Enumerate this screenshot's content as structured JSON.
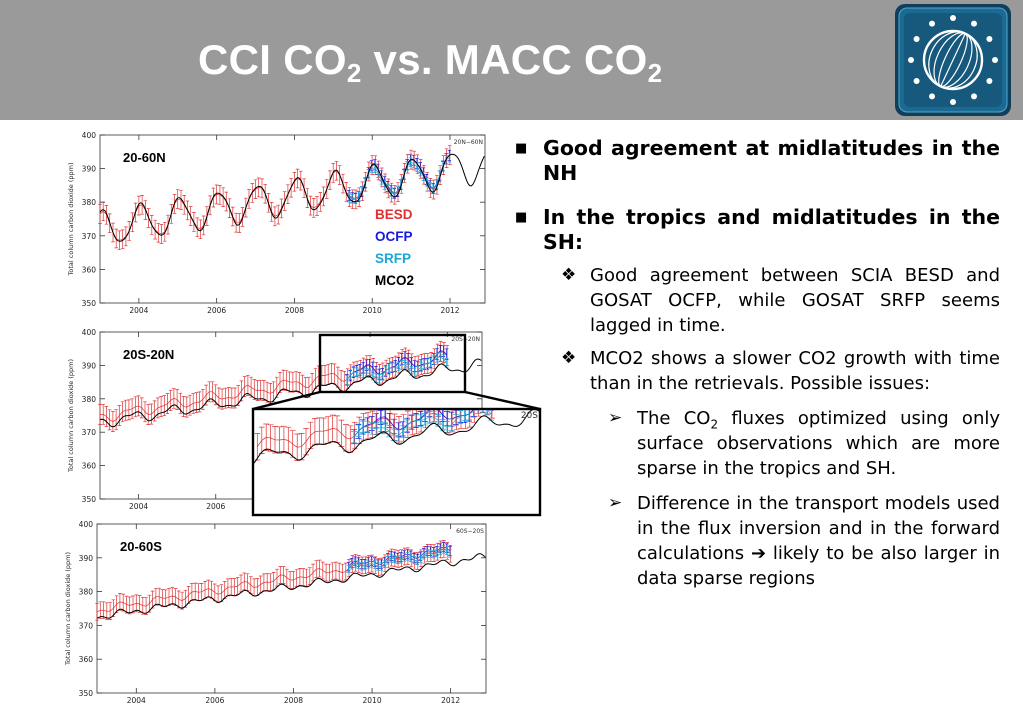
{
  "slide": {
    "title_main": "CCI CO",
    "title_sub1": "2",
    "title_vs": " vs. MACC CO",
    "title_sub2": "2"
  },
  "bullets": {
    "b1": "Good agreement at midlatitudes in the NH",
    "b2": "In the tropics and midlatitudes in the SH:",
    "b2_1": "Good agreement between SCIA BESD and GOSAT OCFP, while GOSAT SRFP seems lagged in time.",
    "b2_2": "MCO2 shows a slower CO2 growth with time than in the retrievals. Possible issues:",
    "b3_1_pre": "The CO",
    "b3_1_sub": "2",
    "b3_1_post": " fluxes optimized using only surface observations which are more sparse in the tropics and SH.",
    "b3_2_pre": "Difference in the transport models used in the flux inversion and in the forward calculations ",
    "b3_2_post": " likely to be also larger in data sparse regions"
  },
  "colors": {
    "header": "#9a9a9a",
    "besd": "#e03030",
    "ocfp": "#1a1adc",
    "srfp": "#1aa7d8",
    "mco2": "#000000",
    "logo_bg": "#1a5f86"
  },
  "icons": [
    "bullet-square-icon",
    "bullet-diamond-icon",
    "bullet-arrowhead-icon",
    "right-arrow-icon",
    "esa-cci-logo"
  ],
  "legend": {
    "besd": "BESD",
    "ocfp": "OCFP",
    "srfp": "SRFP",
    "mco2": "MCO2"
  },
  "chart_data": [
    {
      "type": "line",
      "panel_label": "20-60N",
      "corner_label": "20N−60N",
      "ylabel": "Total column carbon dioxide (ppm)",
      "xticks": [
        "2004",
        "2006",
        "2008",
        "2010",
        "2012"
      ],
      "yticks": [
        "350",
        "360",
        "370",
        "380",
        "390",
        "400"
      ],
      "xlim": [
        2003.0,
        2012.9
      ],
      "ylim": [
        350,
        400
      ],
      "series": [
        {
          "name": "BESD",
          "kind": "errorbar",
          "x_start": 2003.0,
          "x_end": 2012.0,
          "step": 0.0833,
          "base": 371.9,
          "trend_per_year": 2.0,
          "season_amp": 4.8,
          "season_phase": 0.2,
          "err": 2.8
        },
        {
          "name": "OCFP",
          "kind": "errorbar",
          "x_start": 2009.4,
          "x_end": 2012.0,
          "step": 0.0833,
          "base": 372.1,
          "trend_per_year": 2.0,
          "season_amp": 4.6,
          "season_phase": 0.2,
          "err": 1.5
        },
        {
          "name": "SRFP",
          "kind": "errorbar",
          "x_start": 2009.4,
          "x_end": 2012.0,
          "step": 0.0833,
          "base": 371.6,
          "trend_per_year": 2.0,
          "season_amp": 4.2,
          "season_phase": 0.22,
          "err": 1.3
        },
        {
          "name": "MCO2",
          "kind": "line",
          "x_start": 2003.0,
          "x_end": 2012.9,
          "step": 0.0417,
          "base": 372.0,
          "trend_per_year": 1.95,
          "season_amp": 5.2,
          "season_phase": 0.2,
          "err": 0
        }
      ]
    },
    {
      "type": "line",
      "panel_label": "20S-20N",
      "corner_label": "20S−20N",
      "ylabel": "Total column carbon dioxide (ppm)",
      "xticks": [
        "2004",
        "2006",
        "2008",
        "2010",
        "2012"
      ],
      "yticks": [
        "350",
        "360",
        "370",
        "380",
        "390",
        "400"
      ],
      "xlim": [
        2003.0,
        2012.9
      ],
      "ylim": [
        350,
        400
      ],
      "series": [
        {
          "name": "BESD",
          "kind": "errorbar",
          "x_start": 2003.0,
          "x_end": 2012.0,
          "step": 0.0833,
          "base": 374.5,
          "trend_per_year": 2.0,
          "season_amp": 1.4,
          "season_phase": 0.4,
          "err": 3.0
        },
        {
          "name": "OCFP",
          "kind": "errorbar",
          "x_start": 2009.4,
          "x_end": 2012.0,
          "step": 0.0833,
          "base": 374.6,
          "trend_per_year": 2.0,
          "season_amp": 1.6,
          "season_phase": 0.4,
          "err": 1.6
        },
        {
          "name": "SRFP",
          "kind": "errorbar",
          "x_start": 2009.4,
          "x_end": 2012.0,
          "step": 0.0833,
          "base": 373.4,
          "trend_per_year": 2.0,
          "season_amp": 1.3,
          "season_phase": 0.55,
          "err": 1.3
        },
        {
          "name": "MCO2",
          "kind": "line",
          "x_start": 2003.0,
          "x_end": 2012.9,
          "step": 0.0417,
          "base": 373.0,
          "trend_per_year": 1.75,
          "season_amp": 1.4,
          "season_phase": 0.4,
          "err": 0
        }
      ],
      "inset": {
        "xlim": [
          2007.5,
          2012.9
        ],
        "ylim": [
          350,
          400
        ],
        "corner_label": "20S"
      }
    },
    {
      "type": "line",
      "panel_label": "20-60S",
      "corner_label": "60S−20S",
      "ylabel": "Total column carbon dioxide (ppm)",
      "xticks": [
        "2004",
        "2006",
        "2008",
        "2010",
        "2012"
      ],
      "yticks": [
        "350",
        "360",
        "370",
        "380",
        "390",
        "400"
      ],
      "xlim": [
        2003.0,
        2012.9
      ],
      "ylim": [
        350,
        400
      ],
      "series": [
        {
          "name": "BESD",
          "kind": "errorbar",
          "x_start": 2003.0,
          "x_end": 2012.0,
          "step": 0.0833,
          "base": 374.5,
          "trend_per_year": 1.95,
          "season_amp": 0.8,
          "season_phase": 0.6,
          "err": 2.5
        },
        {
          "name": "OCFP",
          "kind": "errorbar",
          "x_start": 2009.4,
          "x_end": 2012.0,
          "step": 0.0833,
          "base": 375.1,
          "trend_per_year": 1.95,
          "season_amp": 0.6,
          "season_phase": 0.6,
          "err": 1.3
        },
        {
          "name": "SRFP",
          "kind": "errorbar",
          "x_start": 2009.4,
          "x_end": 2012.0,
          "step": 0.0833,
          "base": 374.4,
          "trend_per_year": 1.95,
          "season_amp": 0.6,
          "season_phase": 0.6,
          "err": 1.1
        },
        {
          "name": "MCO2",
          "kind": "line",
          "x_start": 2003.0,
          "x_end": 2012.9,
          "step": 0.0417,
          "base": 372.5,
          "trend_per_year": 1.8,
          "season_amp": 0.7,
          "season_phase": 0.6,
          "err": 0
        }
      ]
    }
  ]
}
